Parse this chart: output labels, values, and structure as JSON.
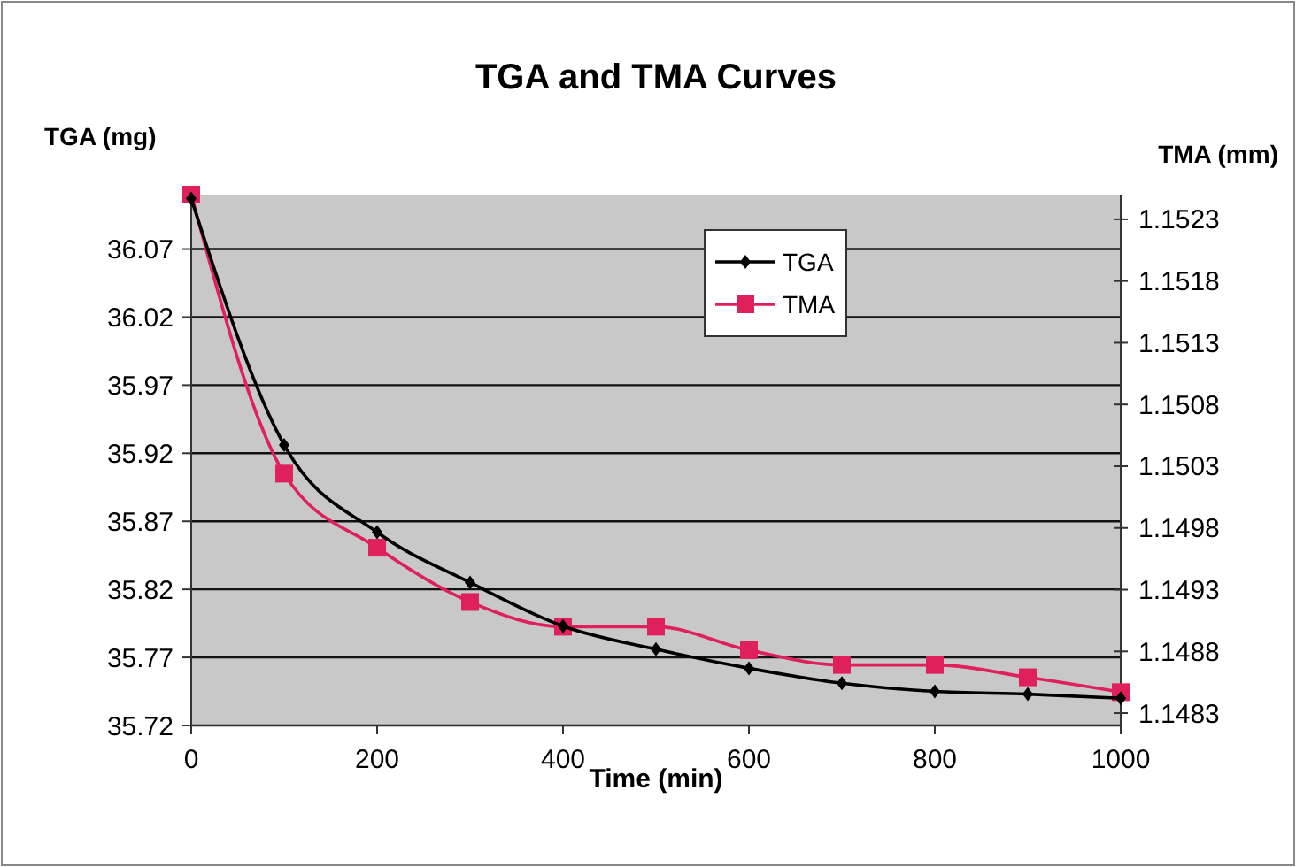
{
  "chart_data": {
    "type": "line",
    "title": "TGA and TMA Curves",
    "xlabel": "Time (min)",
    "ylabel": "TGA (mg)",
    "y2label": "TMA (mm)",
    "x": [
      0,
      100,
      200,
      300,
      400,
      500,
      600,
      700,
      800,
      900,
      1000
    ],
    "series": [
      {
        "name": "TGA",
        "color": "#000000",
        "marker": "diamond",
        "values": [
          36.107,
          35.926,
          35.862,
          35.825,
          35.793,
          35.776,
          35.762,
          35.751,
          35.745,
          35.743,
          35.74
        ]
      },
      {
        "name": "TMA",
        "color": "#e0205a",
        "marker": "square",
        "axis": "y2",
        "values": [
          1.1525,
          1.15024,
          1.14964,
          1.1492,
          1.149,
          1.149,
          1.14881,
          1.14869,
          1.14869,
          1.14859,
          1.14847
        ]
      }
    ],
    "xlim": [
      0,
      1000
    ],
    "xticks": [
      0,
      200,
      400,
      600,
      800,
      1000
    ],
    "ylim": [
      35.72,
      36.11
    ],
    "yticks": [
      35.72,
      35.77,
      35.82,
      35.87,
      35.92,
      35.97,
      36.02,
      36.07
    ],
    "y2lim": [
      1.1482,
      1.1525
    ],
    "y2ticks": [
      1.1483,
      1.1488,
      1.1493,
      1.1498,
      1.1503,
      1.1508,
      1.1513,
      1.1518,
      1.1523
    ],
    "grid": "y",
    "legend": "top right",
    "line_style": "solid"
  }
}
